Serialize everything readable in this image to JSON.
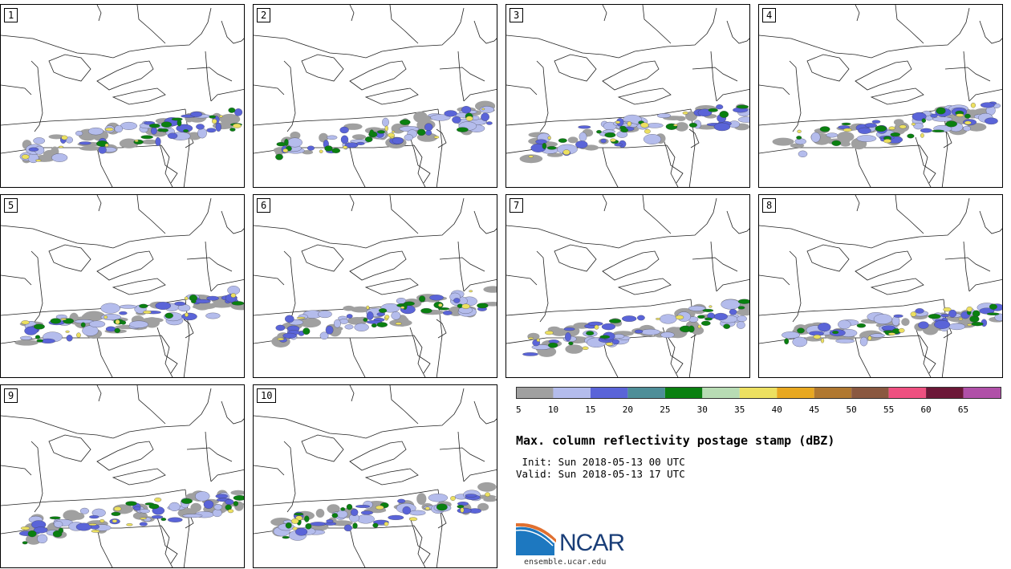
{
  "panels": [
    {
      "label": "1"
    },
    {
      "label": "2"
    },
    {
      "label": "3"
    },
    {
      "label": "4"
    },
    {
      "label": "5"
    },
    {
      "label": "6"
    },
    {
      "label": "7"
    },
    {
      "label": "8"
    },
    {
      "label": "9"
    },
    {
      "label": "10"
    }
  ],
  "colorbar": {
    "ticks": [
      "5",
      "10",
      "15",
      "20",
      "25",
      "30",
      "35",
      "40",
      "45",
      "50",
      "55",
      "60",
      "65"
    ],
    "colors": [
      "#a0a0a0",
      "#b4bcec",
      "#5a64d8",
      "#4e8e98",
      "#0a8010",
      "#b8dcb4",
      "#ece060",
      "#e8a820",
      "#b07830",
      "#8a5840",
      "#ee5080",
      "#6c1838",
      "#b050a8"
    ]
  },
  "title": "Max. column reflectivity postage stamp (dBZ)",
  "init_line": " Init: Sun 2018-05-13 00 UTC",
  "valid_line": "Valid: Sun 2018-05-13 17 UTC",
  "logo": {
    "text": "NCAR",
    "site": "ensemble.ucar.edu"
  }
}
